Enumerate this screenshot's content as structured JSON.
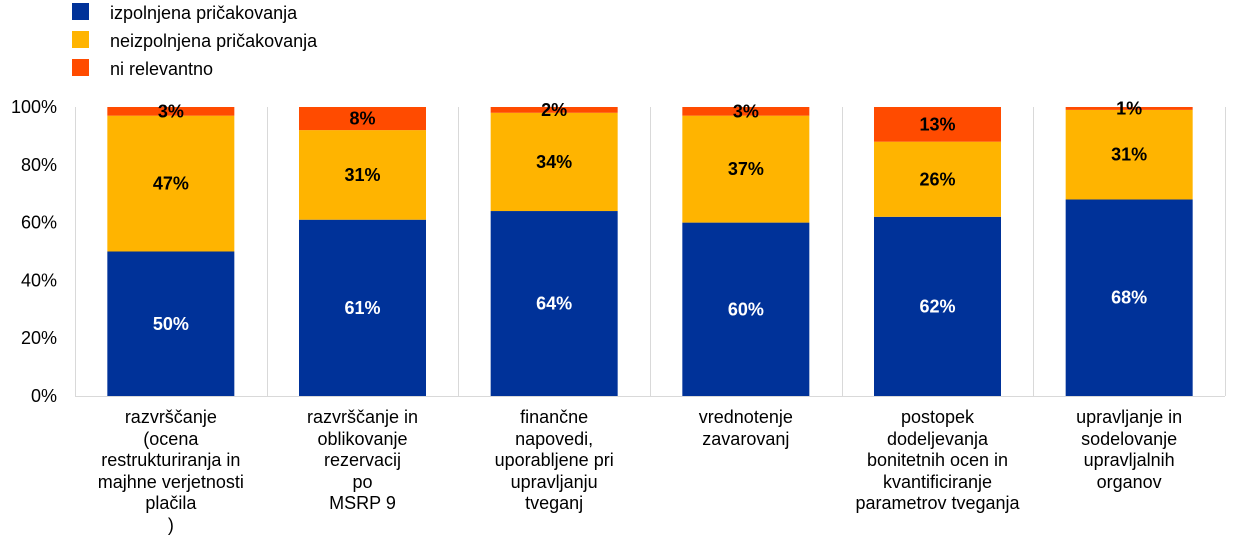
{
  "chart_data": {
    "type": "bar",
    "stacked": true,
    "categories": [
      [
        "razvrščanje",
        "(ocena",
        "restrukturiranja in",
        "majhne verjetnosti",
        "plačila",
        ")"
      ],
      [
        "razvrščanje in",
        "oblikovanje",
        "rezervacij",
        "po",
        "MSRP 9"
      ],
      [
        "finančne",
        "napovedi,",
        "uporabljene pri",
        "upravljanju",
        "tveganj"
      ],
      [
        "vrednotenje",
        "zavarovanj"
      ],
      [
        "postopek",
        "dodeljevanja",
        "bonitetnih ocen in",
        "kvantificiranje",
        "parametrov tveganja"
      ],
      [
        "upravljanje in",
        "sodelovanje",
        "upravljalnih",
        "organov"
      ]
    ],
    "series": [
      {
        "name": "izpolnjena pričakovanja",
        "color": "#003299",
        "values": [
          50,
          61,
          64,
          60,
          62,
          68
        ],
        "labels": [
          "50%",
          "61%",
          "64%",
          "60%",
          "62%",
          "68%"
        ],
        "label_color": "#ffffff"
      },
      {
        "name": "neizpolnjena pričakovanja",
        "color": "#ffb400",
        "values": [
          47,
          31,
          34,
          37,
          26,
          31
        ],
        "labels": [
          "47%",
          "31%",
          "34%",
          "37%",
          "26%",
          "31%"
        ],
        "label_color": "#000000"
      },
      {
        "name": "ni relevantno",
        "color": "#ff4b00",
        "values": [
          3,
          8,
          2,
          3,
          13,
          1
        ],
        "labels": [
          "3%",
          "8%",
          "2%",
          "3%",
          "13%",
          "1%"
        ],
        "label_color": "#000000"
      }
    ],
    "ylim": [
      0,
      100
    ],
    "yticks": [
      "0%",
      "20%",
      "40%",
      "60%",
      "80%",
      "100%"
    ],
    "grid": "vertical separators",
    "legend_position": "top-left"
  }
}
